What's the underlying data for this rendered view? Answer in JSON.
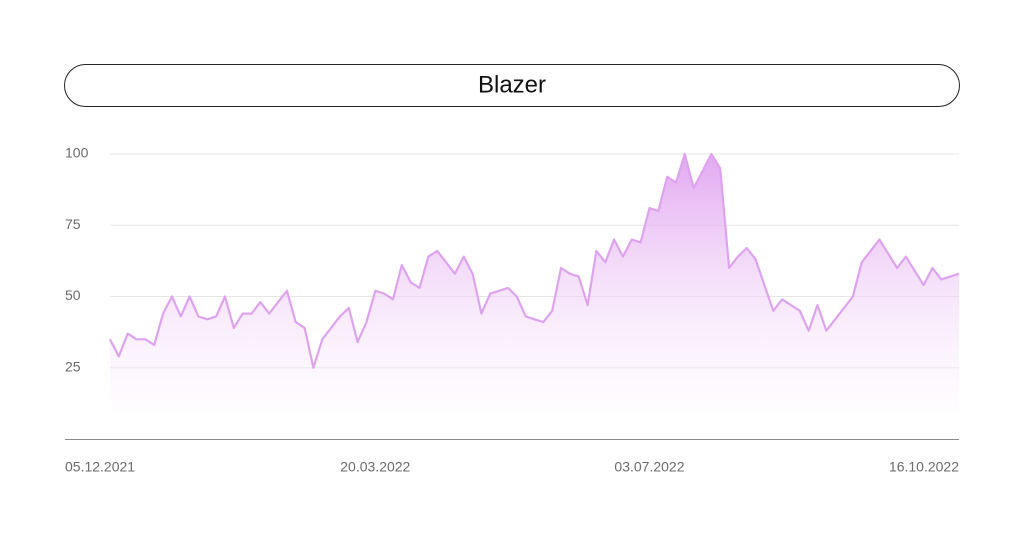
{
  "chart_data": {
    "type": "area",
    "title": "Blazer",
    "categories": [
      "05.12.2021",
      null,
      null,
      null,
      null,
      null,
      null,
      null,
      null,
      null,
      null,
      null,
      null,
      null,
      null,
      null,
      null,
      null,
      null,
      null,
      null,
      null,
      null,
      null,
      null,
      null,
      null,
      null,
      null,
      null,
      "20.03.2022",
      null,
      null,
      null,
      null,
      null,
      null,
      null,
      null,
      null,
      null,
      null,
      null,
      null,
      null,
      null,
      null,
      null,
      null,
      null,
      null,
      null,
      null,
      null,
      null,
      null,
      null,
      null,
      null,
      null,
      null,
      "03.07.2022",
      null,
      null,
      null,
      null,
      null,
      null,
      null,
      null,
      null,
      null,
      null,
      null,
      null,
      null,
      null,
      null,
      null,
      null,
      null,
      null,
      null,
      null,
      null,
      null,
      null,
      null,
      null,
      null,
      null,
      null,
      null,
      null,
      null,
      null,
      "16.10.2022"
    ],
    "values": [
      35,
      29,
      37,
      35,
      35,
      33,
      44,
      50,
      43,
      50,
      43,
      42,
      43,
      50,
      39,
      44,
      44,
      48,
      44,
      48,
      52,
      41,
      39,
      25,
      35,
      39,
      43,
      46,
      34,
      41,
      52,
      51,
      49,
      61,
      55,
      53,
      64,
      66,
      62,
      58,
      64,
      58,
      44,
      51,
      52,
      53,
      50,
      43,
      42,
      41,
      45,
      60,
      58,
      57,
      47,
      66,
      62,
      70,
      64,
      70,
      69,
      81,
      80,
      92,
      90,
      100,
      88,
      94,
      100,
      95,
      60,
      64,
      67,
      63,
      54,
      45,
      49,
      47,
      45,
      38,
      47,
      38,
      42,
      46,
      50,
      62,
      66,
      70,
      65,
      60,
      64,
      59,
      54,
      60,
      56,
      57,
      58
    ],
    "color": "#dea3ef",
    "ylim": [
      0,
      100
    ],
    "yticks": [
      25,
      50,
      75,
      100
    ],
    "grid": true
  }
}
